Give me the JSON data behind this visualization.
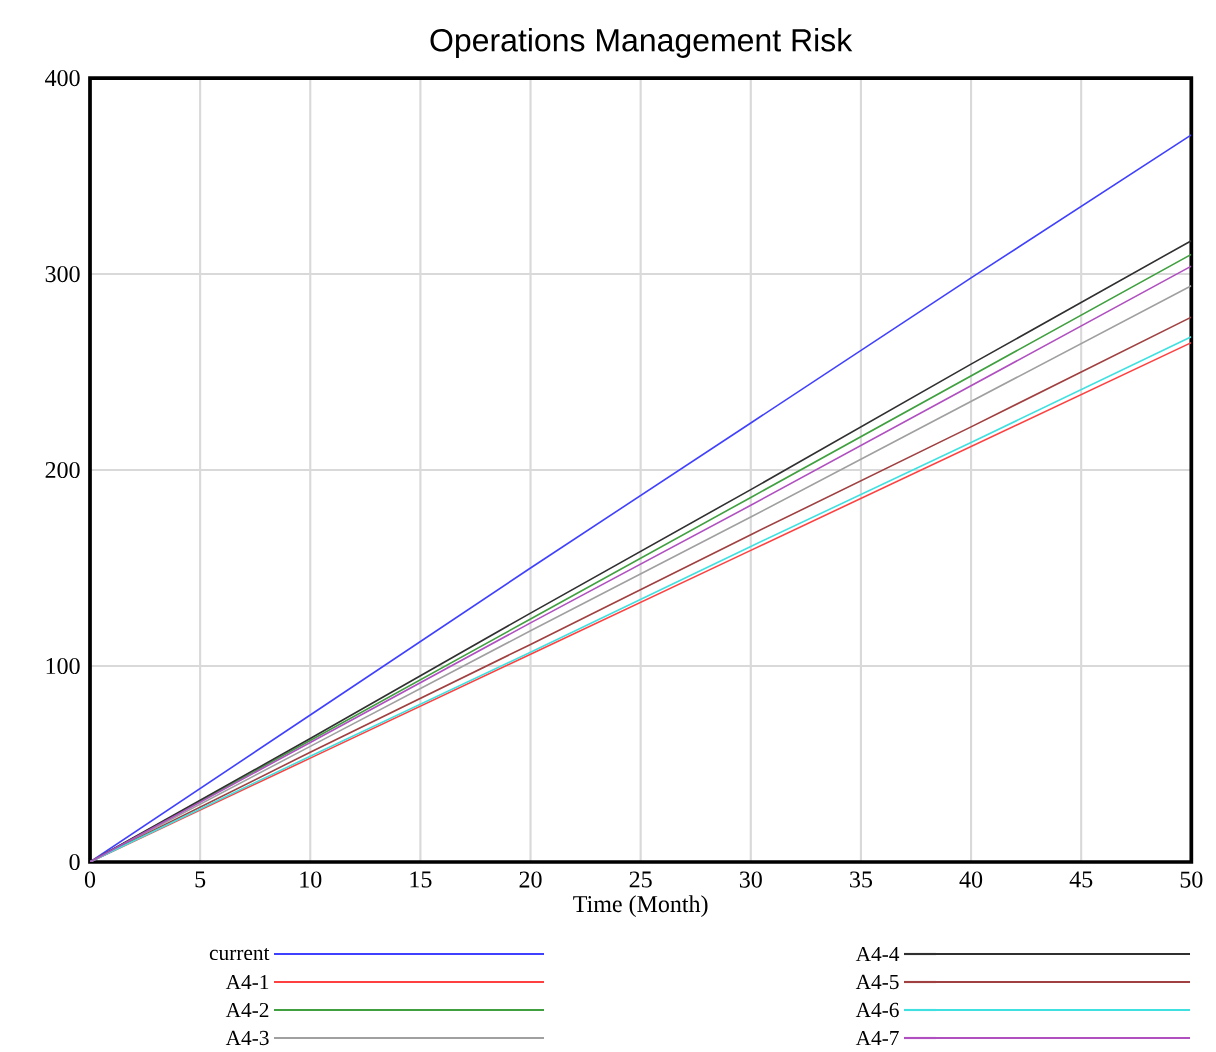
{
  "chart_data": {
    "type": "line",
    "title": "Operations Management Risk",
    "xlabel": "Time (Month)",
    "x": [
      0,
      10,
      20,
      30,
      40,
      50
    ],
    "series": [
      {
        "name": "current",
        "color": "#4040ff",
        "values": [
          0,
          75,
          150,
          224,
          298,
          371
        ]
      },
      {
        "name": "A4-1",
        "color": "#ff4040",
        "values": [
          0,
          53,
          106,
          159,
          212,
          265
        ]
      },
      {
        "name": "A4-2",
        "color": "#40a040",
        "values": [
          0,
          62,
          124,
          186,
          248,
          310
        ]
      },
      {
        "name": "A4-3",
        "color": "#a0a0a0",
        "values": [
          0,
          59,
          118,
          176,
          235,
          294
        ]
      },
      {
        "name": "A4-4",
        "color": "#303030",
        "values": [
          0,
          63,
          127,
          190,
          254,
          317
        ]
      },
      {
        "name": "A4-5",
        "color": "#a04040",
        "values": [
          0,
          56,
          111,
          167,
          222,
          278
        ]
      },
      {
        "name": "A4-6",
        "color": "#40e0e0",
        "values": [
          0,
          54,
          107,
          161,
          214,
          268
        ]
      },
      {
        "name": "A4-7",
        "color": "#b050c0",
        "values": [
          0,
          61,
          122,
          182,
          243,
          304
        ]
      }
    ],
    "xlim": [
      0,
      50
    ],
    "ylim": [
      0,
      400
    ],
    "xticks": [
      0,
      5,
      10,
      15,
      20,
      25,
      30,
      35,
      40,
      45,
      50
    ],
    "yticks": [
      0,
      100,
      200,
      300,
      400
    ],
    "grid": true,
    "legend": "bottom",
    "line_style": "solid",
    "marker": "none"
  }
}
